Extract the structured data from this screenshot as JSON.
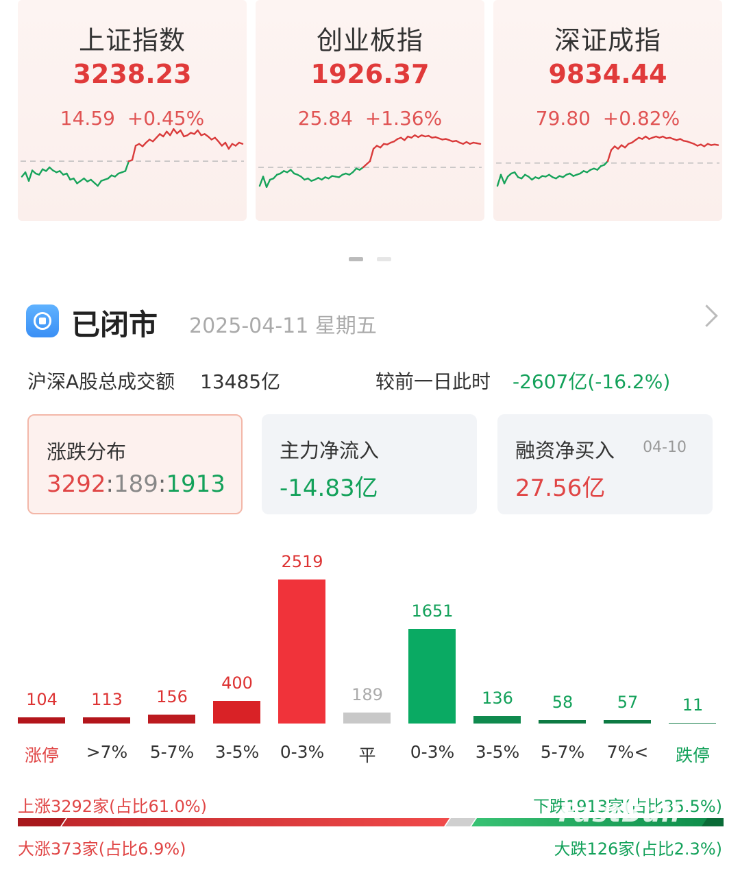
{
  "indices": [
    {
      "name": "上证指数",
      "price": "3238.23",
      "change": "14.59",
      "pct": "+0.45%",
      "line": [
        0.55,
        0.48,
        0.62,
        0.45,
        0.5,
        0.52,
        0.43,
        0.46,
        0.4,
        0.45,
        0.48,
        0.46,
        0.52,
        0.5,
        0.6,
        0.58,
        0.66,
        0.62,
        0.58,
        0.63,
        0.6,
        0.65,
        0.7,
        0.62,
        0.6,
        0.58,
        0.53,
        0.55,
        0.5,
        0.48,
        0.46,
        0.3,
        0.28,
        0.05,
        0.02,
        0.06,
        0.0,
        -0.05,
        -0.02,
        -0.08,
        -0.14,
        -0.1,
        -0.18,
        -0.12,
        -0.22,
        -0.15,
        -0.2,
        -0.1,
        -0.12,
        -0.16,
        -0.14,
        -0.2,
        -0.12,
        -0.14,
        -0.1,
        -0.05,
        -0.08,
        -0.02,
        0.05,
        0.0,
        0.1,
        0.02,
        0.05,
        0.0,
        0.02
      ],
      "baseline": 0.3
    },
    {
      "name": "创业板指",
      "price": "1926.37",
      "change": "25.84",
      "pct": "+1.36%",
      "line": [
        0.7,
        0.55,
        0.72,
        0.6,
        0.58,
        0.52,
        0.5,
        0.46,
        0.48,
        0.44,
        0.5,
        0.52,
        0.55,
        0.6,
        0.58,
        0.62,
        0.6,
        0.57,
        0.6,
        0.56,
        0.58,
        0.54,
        0.55,
        0.56,
        0.52,
        0.5,
        0.52,
        0.48,
        0.42,
        0.44,
        0.4,
        0.35,
        0.3,
        0.1,
        0.05,
        0.08,
        0.02,
        0.03,
        0.0,
        -0.02,
        -0.06,
        -0.08,
        -0.04,
        -0.1,
        -0.08,
        -0.12,
        -0.09,
        -0.12,
        -0.1,
        -0.11,
        -0.08,
        -0.09,
        -0.07,
        -0.05,
        -0.06,
        -0.04,
        -0.02,
        -0.03,
        0.0,
        0.02,
        -0.01,
        0.02,
        0.0,
        0.01,
        0.02
      ],
      "baseline": 0.4
    },
    {
      "name": "深证成指",
      "price": "9834.44",
      "change": "79.80",
      "pct": "+0.82%",
      "line": [
        0.7,
        0.52,
        0.66,
        0.55,
        0.5,
        0.48,
        0.56,
        0.58,
        0.52,
        0.55,
        0.6,
        0.56,
        0.58,
        0.54,
        0.55,
        0.52,
        0.56,
        0.58,
        0.54,
        0.56,
        0.52,
        0.5,
        0.54,
        0.52,
        0.5,
        0.46,
        0.48,
        0.44,
        0.42,
        0.44,
        0.38,
        0.36,
        0.3,
        0.12,
        0.06,
        0.1,
        0.04,
        0.08,
        0.02,
        0.0,
        -0.04,
        -0.08,
        -0.06,
        -0.1,
        -0.06,
        -0.08,
        -0.1,
        -0.08,
        -0.1,
        -0.07,
        -0.08,
        -0.06,
        -0.04,
        -0.06,
        -0.03,
        -0.02,
        0.0,
        0.02,
        0.05,
        0.03,
        0.06,
        0.02,
        0.04,
        0.03,
        0.04
      ],
      "baseline": 0.33
    }
  ],
  "header": {
    "status": "已闭市",
    "date": "2025-04-11 星期五"
  },
  "turnover": {
    "label": "沪深A股总成交额",
    "value": "13485亿",
    "compare_label": "较前一日此时",
    "compare_value": "-2607亿(-16.2%)"
  },
  "stats": [
    {
      "label": "涨跌分布",
      "up": "3292",
      "flat": "189",
      "down": "1913"
    },
    {
      "label": "主力净流入",
      "value": "-14.83亿"
    },
    {
      "label": "融资净买入",
      "value": "27.56亿",
      "date": "04-10"
    }
  ],
  "chart_data": {
    "type": "bar",
    "categories": [
      "涨停",
      ">7%",
      "5-7%",
      "3-5%",
      "0-3%",
      "平",
      "0-3%",
      "3-5%",
      "5-7%",
      "7%<",
      "跌停"
    ],
    "values": [
      104,
      113,
      156,
      400,
      2519,
      189,
      1651,
      136,
      58,
      57,
      11
    ]
  },
  "summary": {
    "up": "上涨3292家(占比61.0%)",
    "down": "下跌1913家(占比35.5%)",
    "big_up": "大涨373家(占比6.9%)",
    "big_down": "大跌126家(占比2.3%)",
    "watermark": "FastBull"
  },
  "colors": {
    "red": "#e53935",
    "green": "#0ea25c",
    "gray": "#c8c8c8"
  }
}
